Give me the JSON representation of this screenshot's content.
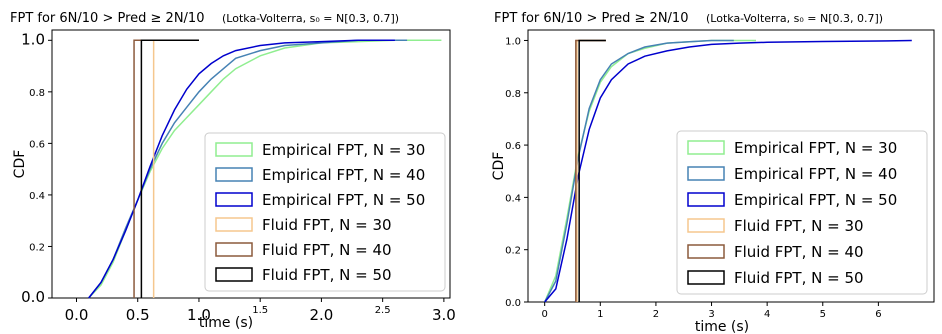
{
  "chart_data": [
    {
      "type": "line",
      "title_main": "FPT for 6N/10 > Pred ≥ 2N/10",
      "title_note": "(Lotka-Volterra, s₀ = N[0.3, 0.7])",
      "xlabel": "time (s)",
      "ylabel": "CDF",
      "xlim": [
        -0.2,
        3.05
      ],
      "ylim": [
        0,
        1.04
      ],
      "xticks_big": [
        "0.0",
        "0.5",
        "1.0",
        "2.0",
        "3.0"
      ],
      "xticks_big_values": [
        0.0,
        0.5,
        1.0,
        2.0,
        3.0
      ],
      "xticks_small": [
        "1.5",
        "2.5"
      ],
      "xticks_small_values": [
        1.5,
        2.5
      ],
      "yticks_big": [
        "0.0",
        "1.0"
      ],
      "yticks_big_values": [
        0.0,
        1.0
      ],
      "yticks_small": [
        "0.2",
        "0.4",
        "0.6",
        "0.8"
      ],
      "yticks_small_values": [
        0.2,
        0.4,
        0.6,
        0.8
      ],
      "legend_position": "lower-right",
      "series": [
        {
          "name": "Empirical FPT, N = 30",
          "color": "#90ee90",
          "x": [
            0.1,
            0.2,
            0.3,
            0.4,
            0.5,
            0.6,
            0.7,
            0.8,
            0.9,
            1.0,
            1.1,
            1.2,
            1.3,
            1.5,
            1.7,
            2.0,
            2.3,
            2.6,
            2.98
          ],
          "y": [
            0.0,
            0.05,
            0.14,
            0.26,
            0.38,
            0.49,
            0.58,
            0.65,
            0.7,
            0.75,
            0.8,
            0.85,
            0.89,
            0.94,
            0.97,
            0.99,
            0.995,
            1.0,
            1.0
          ]
        },
        {
          "name": "Empirical FPT, N = 40",
          "color": "#4682b4",
          "x": [
            0.1,
            0.2,
            0.3,
            0.4,
            0.5,
            0.6,
            0.7,
            0.8,
            0.9,
            1.0,
            1.1,
            1.2,
            1.3,
            1.5,
            1.7,
            2.0,
            2.3,
            2.7
          ],
          "y": [
            0.0,
            0.06,
            0.15,
            0.27,
            0.38,
            0.5,
            0.6,
            0.68,
            0.74,
            0.8,
            0.85,
            0.89,
            0.93,
            0.96,
            0.98,
            0.99,
            1.0,
            1.0
          ]
        },
        {
          "name": "Empirical FPT, N = 50",
          "color": "#0000cd",
          "x": [
            0.1,
            0.2,
            0.3,
            0.4,
            0.5,
            0.6,
            0.7,
            0.8,
            0.9,
            1.0,
            1.1,
            1.2,
            1.3,
            1.5,
            1.7,
            2.0,
            2.3,
            2.6
          ],
          "y": [
            0.0,
            0.06,
            0.15,
            0.26,
            0.38,
            0.51,
            0.63,
            0.73,
            0.81,
            0.87,
            0.91,
            0.94,
            0.96,
            0.98,
            0.99,
            0.995,
            1.0,
            1.0
          ]
        },
        {
          "name": "Fluid FPT, N = 30",
          "color": "#f5c78e",
          "step_at": 0.63,
          "end": 1.0
        },
        {
          "name": "Fluid FPT, N = 40",
          "color": "#8b5a3c",
          "step_at": 0.47,
          "end": 1.0
        },
        {
          "name": "Fluid FPT, N = 50",
          "color": "#000000",
          "step_at": 0.53,
          "end": 1.0
        }
      ]
    },
    {
      "type": "line",
      "title_main": "FPT for 6N/10 > Pred ≥ 2N/10",
      "title_note": "(Lotka-Volterra, s₀ = N[0.3, 0.7])",
      "xlabel": "time (s)",
      "ylabel": "CDF",
      "xlim": [
        -0.3,
        7.0
      ],
      "ylim": [
        0,
        1.04
      ],
      "xticks_small": [
        "0",
        "1",
        "2",
        "3",
        "4",
        "5",
        "6"
      ],
      "xticks_small_values": [
        0,
        1,
        2,
        3,
        4,
        5,
        6
      ],
      "yticks_small": [
        "0.0",
        "0.2",
        "0.4",
        "0.6",
        "0.8",
        "1.0"
      ],
      "yticks_small_values": [
        0.0,
        0.2,
        0.4,
        0.6,
        0.8,
        1.0
      ],
      "legend_position": "lower-right",
      "series": [
        {
          "name": "Empirical FPT, N = 30",
          "color": "#90ee90",
          "x": [
            0.0,
            0.2,
            0.4,
            0.6,
            0.8,
            1.0,
            1.2,
            1.5,
            1.8,
            2.2,
            2.6,
            3.0,
            3.5,
            3.8
          ],
          "y": [
            0.0,
            0.1,
            0.32,
            0.56,
            0.73,
            0.84,
            0.9,
            0.95,
            0.97,
            0.99,
            0.995,
            1.0,
            1.0,
            1.0
          ]
        },
        {
          "name": "Empirical FPT, N = 40",
          "color": "#4682b4",
          "x": [
            0.0,
            0.2,
            0.4,
            0.6,
            0.8,
            1.0,
            1.2,
            1.5,
            1.8,
            2.2,
            2.6,
            3.0,
            3.4
          ],
          "y": [
            0.0,
            0.08,
            0.3,
            0.55,
            0.74,
            0.85,
            0.91,
            0.95,
            0.975,
            0.99,
            0.995,
            1.0,
            1.0
          ]
        },
        {
          "name": "Empirical FPT, N = 50",
          "color": "#0000cd",
          "x": [
            0.0,
            0.2,
            0.4,
            0.6,
            0.8,
            1.0,
            1.2,
            1.5,
            1.8,
            2.2,
            2.6,
            3.0,
            3.5,
            4.0,
            5.0,
            6.0,
            6.6
          ],
          "y": [
            0.0,
            0.05,
            0.24,
            0.48,
            0.66,
            0.78,
            0.85,
            0.91,
            0.94,
            0.96,
            0.975,
            0.985,
            0.99,
            0.993,
            0.996,
            0.998,
            1.0
          ]
        },
        {
          "name": "Fluid FPT, N = 30",
          "color": "#f5c78e",
          "step_at": 0.58,
          "end": 1.1
        },
        {
          "name": "Fluid FPT, N = 40",
          "color": "#8b5a3c",
          "step_at": 0.56,
          "end": 1.1
        },
        {
          "name": "Fluid FPT, N = 50",
          "color": "#000000",
          "step_at": 0.62,
          "end": 1.1
        }
      ]
    }
  ]
}
